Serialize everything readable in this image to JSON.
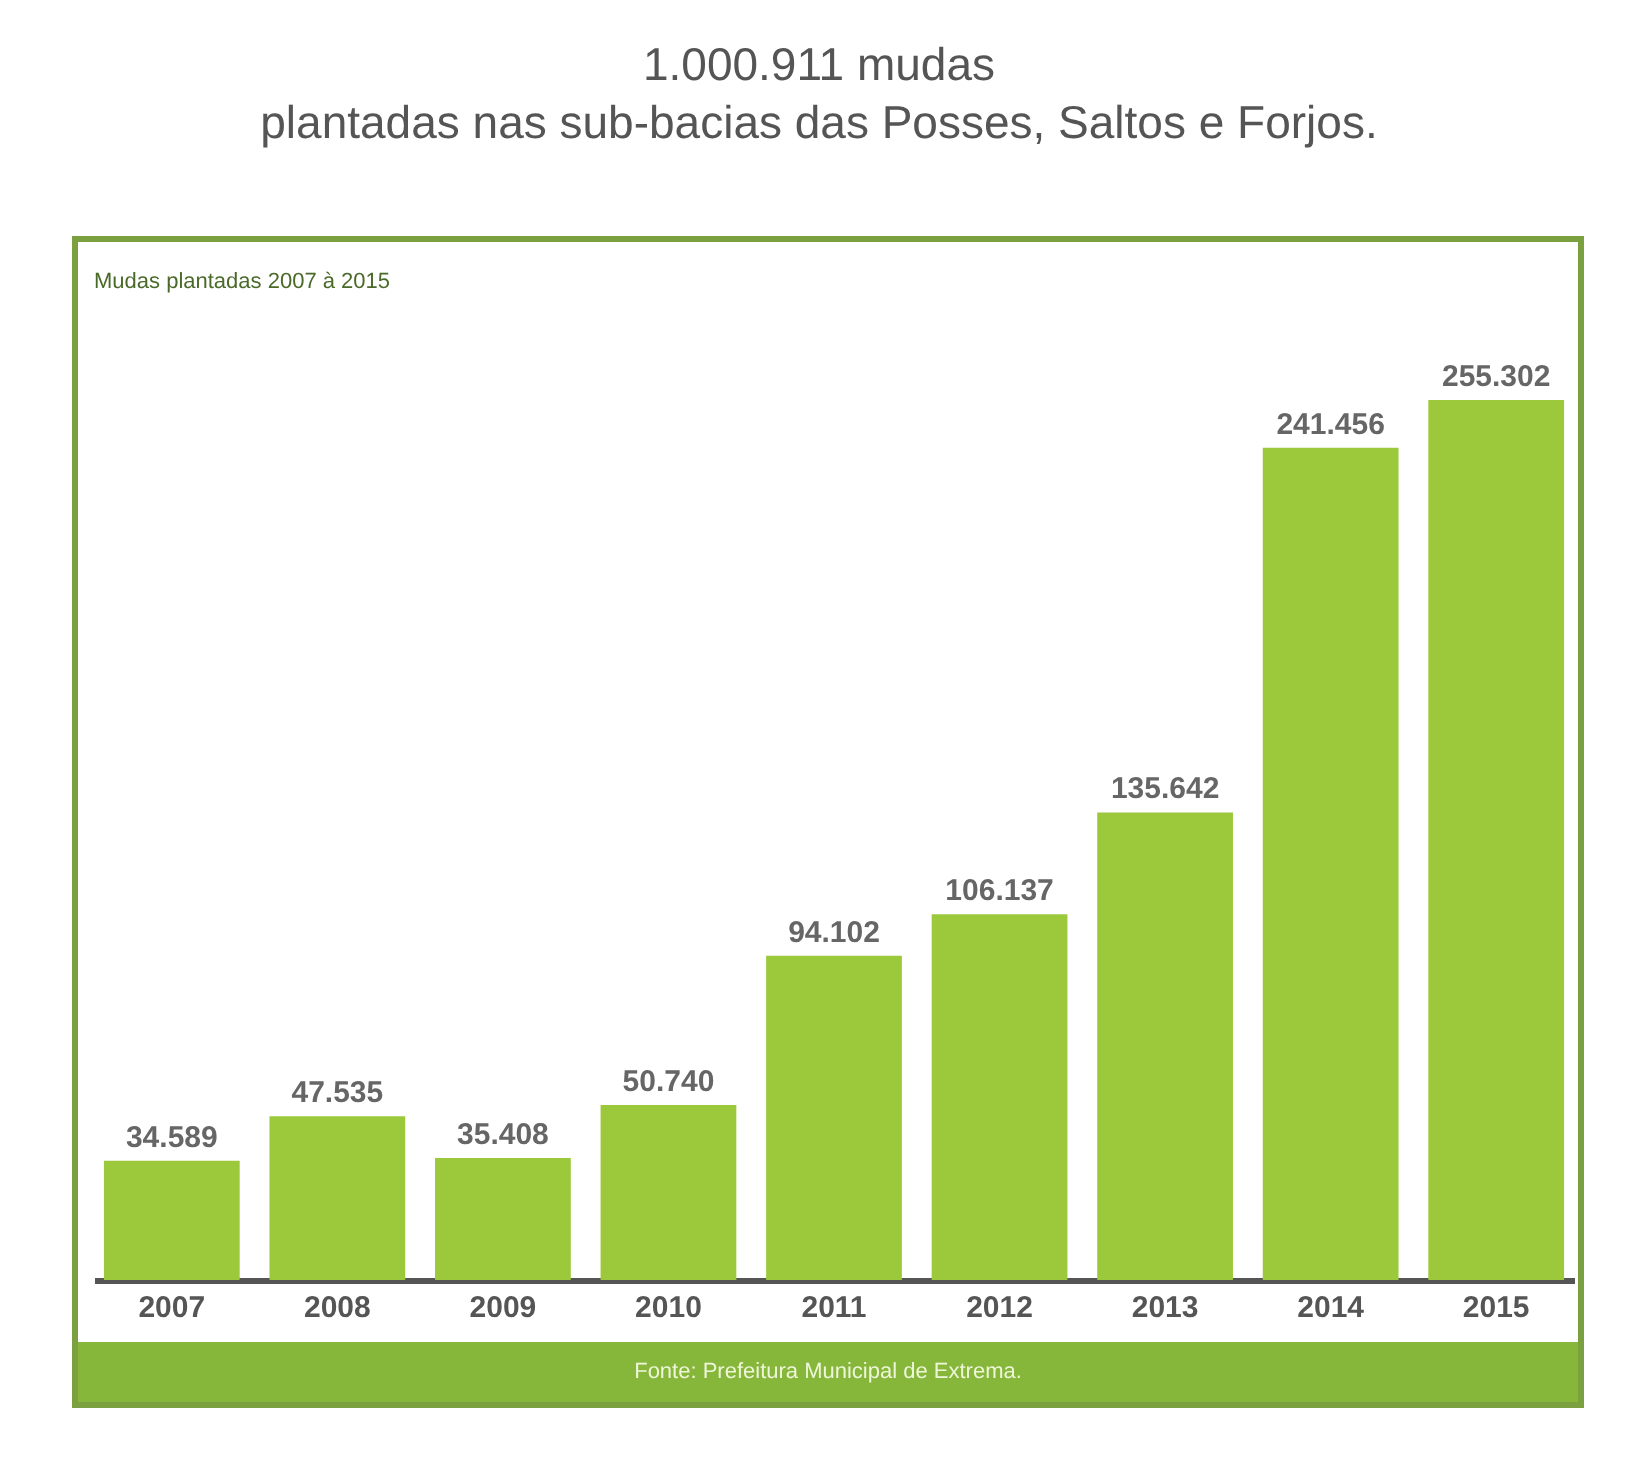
{
  "chart_data": {
    "type": "bar",
    "title": "1.000.911 mudas\nplantadas nas sub-bacias das Posses, Saltos e Forjos.",
    "categories": [
      "2007",
      "2008",
      "2009",
      "2010",
      "2011",
      "2012",
      "2013",
      "2014",
      "2015"
    ],
    "values": [
      34589,
      47535,
      35408,
      50740,
      94102,
      106137,
      135642,
      241456,
      255302
    ],
    "value_labels": [
      "34.589",
      "47.535",
      "35.408",
      "50.740",
      "94.102",
      "106.137",
      "135.642",
      "241.456",
      "255.302"
    ],
    "color": "#9cc83c",
    "annotations": [
      "Mudas plantadas 2007 à 2015",
      "Fonte: Prefeitura Municipal de Extrema."
    ]
  }
}
